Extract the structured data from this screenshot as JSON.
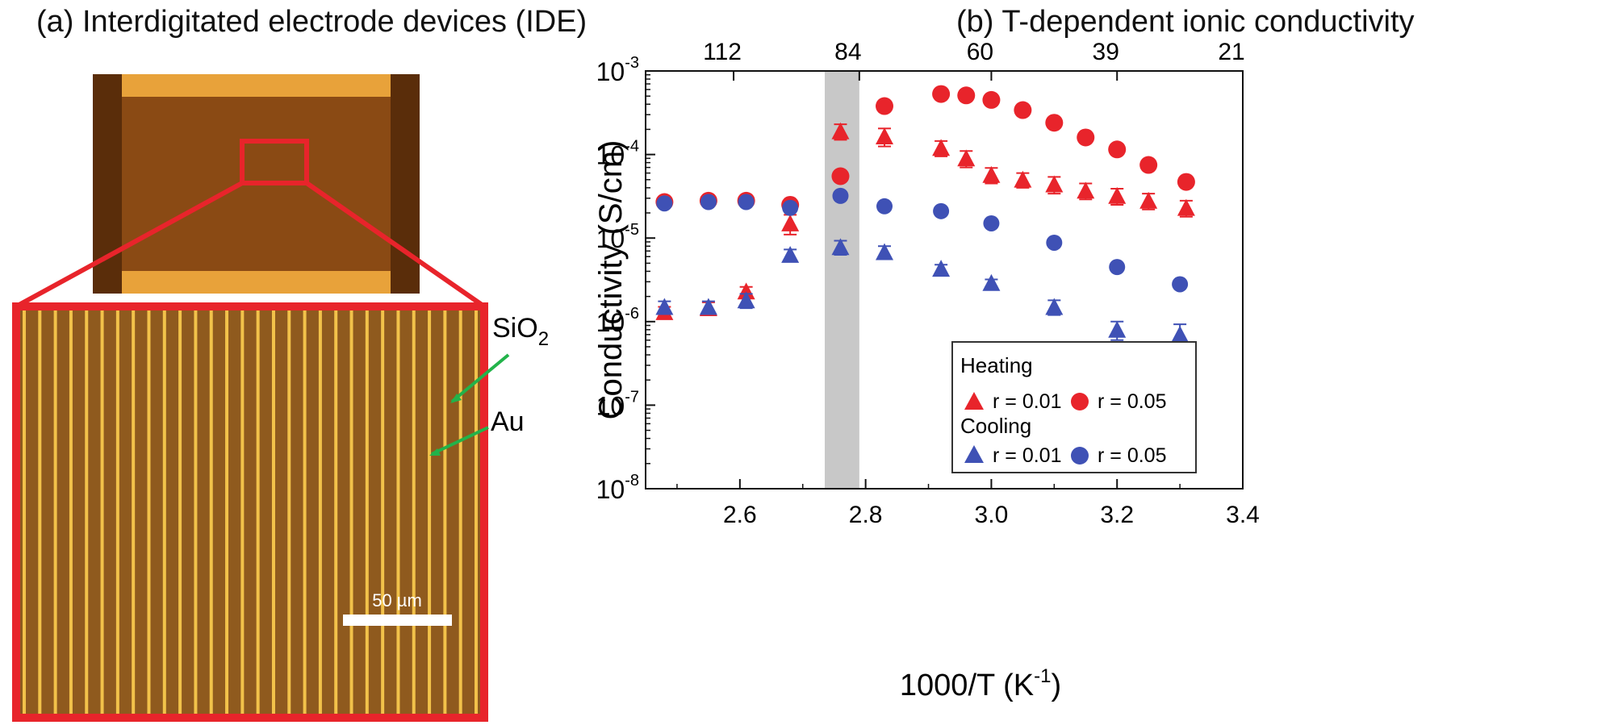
{
  "panel_a": {
    "title": "(a) Interdigitated electrode devices (IDE)",
    "labels": {
      "sio2_main": "SiO",
      "sio2_sub": "2",
      "au": "Au",
      "scale_bar": "50 µm"
    },
    "colors": {
      "substrate": "#8a4a14",
      "pad": "#e8a23a",
      "frame": "#e8242b",
      "finger": "#f2c24a",
      "arrow": "#22b34a"
    }
  },
  "chart_data": {
    "type": "scatter",
    "title": "(b) T-dependent ionic conductivity",
    "xlabel_main": "1000/T (K",
    "xlabel_sup": "-1",
    "xlabel_end": ")",
    "ylabel": "Conductivity (S/cm)",
    "xlim": [
      2.45,
      3.4
    ],
    "ylim": [
      1e-08,
      0.001
    ],
    "yscale": "log",
    "x_ticks": [
      "2.6",
      "2.8",
      "3.0",
      "3.2",
      "3.4"
    ],
    "x_tick_values": [
      2.6,
      2.8,
      3.0,
      3.2,
      3.4
    ],
    "y_ticks": [
      {
        "base": "10",
        "exp": "-8",
        "value": 1e-08
      },
      {
        "base": "10",
        "exp": "-7",
        "value": 1e-07
      },
      {
        "base": "10",
        "exp": "-6",
        "value": 1e-06
      },
      {
        "base": "10",
        "exp": "-5",
        "value": 1e-05
      },
      {
        "base": "10",
        "exp": "-4",
        "value": 0.0001
      },
      {
        "base": "10",
        "exp": "-3",
        "value": 0.001
      }
    ],
    "top_ticks": [
      {
        "label": "112",
        "x": 2.59
      },
      {
        "label": "84",
        "x": 2.79
      },
      {
        "label": "60",
        "x": 3.0
      },
      {
        "label": "39",
        "x": 3.2
      },
      {
        "label": "21",
        "x": 3.4
      }
    ],
    "shaded_region": [
      2.735,
      2.79
    ],
    "legend": {
      "placement": "bottom-right",
      "heating_label": "Heating",
      "cooling_label": "Cooling",
      "r001": "r = 0.01",
      "r005": "r = 0.05"
    },
    "series": [
      {
        "name": "Heating r = 0.01",
        "marker": "triangle",
        "color": "#e8242b",
        "x": [
          2.48,
          2.55,
          2.61,
          2.68,
          2.76,
          2.83,
          2.92,
          2.96,
          3.0,
          3.05,
          3.1,
          3.15,
          3.2,
          3.25,
          3.31
        ],
        "y": [
          1.3e-06,
          1.45e-06,
          2.3e-06,
          1.5e-05,
          0.00019,
          0.000165,
          0.00012,
          9e-05,
          5.7e-05,
          5e-05,
          4.4e-05,
          3.7e-05,
          3.2e-05,
          2.8e-05,
          2.3e-05
        ],
        "err": [
          2e-07,
          2.5e-07,
          3e-07,
          4e-06,
          4e-05,
          4e-05,
          2.5e-05,
          2e-05,
          1.2e-05,
          1e-05,
          1e-05,
          8e-06,
          7e-06,
          6e-06,
          5e-06
        ]
      },
      {
        "name": "Heating r = 0.05",
        "marker": "circle",
        "color": "#e8242b",
        "x": [
          2.48,
          2.55,
          2.61,
          2.68,
          2.76,
          2.83,
          2.92,
          2.96,
          3.0,
          3.05,
          3.1,
          3.15,
          3.2,
          3.25,
          3.31
        ],
        "y": [
          2.7e-05,
          2.8e-05,
          2.8e-05,
          2.5e-05,
          5.5e-05,
          0.00038,
          0.00053,
          0.00051,
          0.00045,
          0.00034,
          0.00024,
          0.00016,
          0.000115,
          7.5e-05,
          4.7e-05
        ]
      },
      {
        "name": "Cooling r = 0.01",
        "marker": "triangle",
        "color": "#3f51b5",
        "x": [
          2.48,
          2.55,
          2.61,
          2.68,
          2.76,
          2.83,
          2.92,
          3.0,
          3.1,
          3.2,
          3.3
        ],
        "y": [
          1.5e-06,
          1.5e-06,
          1.8e-06,
          6.3e-06,
          7.8e-06,
          6.8e-06,
          4.3e-06,
          2.9e-06,
          1.5e-06,
          8e-07,
          7e-07
        ],
        "err": [
          2.5e-07,
          2.5e-07,
          3.5e-07,
          1e-06,
          1.5e-06,
          1.2e-06,
          5e-07,
          3e-07,
          3e-07,
          2e-07,
          2.3e-07
        ]
      },
      {
        "name": "Cooling r = 0.05",
        "marker": "circle",
        "color": "#3f51b5",
        "x": [
          2.48,
          2.55,
          2.61,
          2.68,
          2.76,
          2.83,
          2.92,
          3.0,
          3.1,
          3.2,
          3.3
        ],
        "y": [
          2.6e-05,
          2.7e-05,
          2.7e-05,
          2.3e-05,
          3.2e-05,
          2.4e-05,
          2.1e-05,
          1.5e-05,
          8.8e-06,
          4.5e-06,
          2.8e-06
        ]
      }
    ]
  }
}
